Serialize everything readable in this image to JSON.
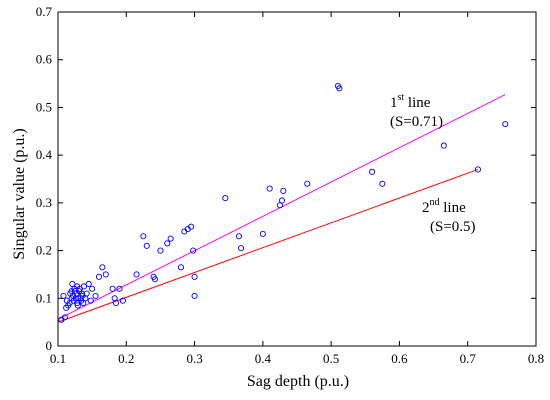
{
  "chart_data": {
    "type": "scatter",
    "xlabel": "Sag depth (p.u.)",
    "ylabel": "Singular  value (p.u.)",
    "xlim": [
      0.1,
      0.8
    ],
    "ylim": [
      0,
      0.7
    ],
    "xticks": [
      "0.1",
      "0.2",
      "0.3",
      "0.4",
      "0.5",
      "0.6",
      "0.7",
      "0.8"
    ],
    "yticks": [
      "0",
      "0.1",
      "0.2",
      "0.3",
      "0.4",
      "0.5",
      "0.6",
      "0.7"
    ],
    "grid": false,
    "series": [
      {
        "marker_color": "#0000ff",
        "x": [
          0.105,
          0.108,
          0.11,
          0.112,
          0.113,
          0.115,
          0.117,
          0.118,
          0.12,
          0.12,
          0.121,
          0.122,
          0.123,
          0.124,
          0.125,
          0.126,
          0.127,
          0.128,
          0.128,
          0.129,
          0.13,
          0.131,
          0.132,
          0.133,
          0.134,
          0.135,
          0.136,
          0.137,
          0.138,
          0.14,
          0.142,
          0.145,
          0.148,
          0.15,
          0.155,
          0.16,
          0.165,
          0.17,
          0.18,
          0.183,
          0.185,
          0.19,
          0.195,
          0.215,
          0.225,
          0.23,
          0.24,
          0.242,
          0.25,
          0.26,
          0.265,
          0.28,
          0.285,
          0.29,
          0.295,
          0.298,
          0.3,
          0.3,
          0.345,
          0.365,
          0.368,
          0.4,
          0.41,
          0.425,
          0.428,
          0.43,
          0.465,
          0.51,
          0.512,
          0.56,
          0.575,
          0.665,
          0.715,
          0.755
        ],
        "y": [
          0.055,
          0.105,
          0.06,
          0.08,
          0.095,
          0.085,
          0.09,
          0.11,
          0.1,
          0.115,
          0.13,
          0.105,
          0.095,
          0.12,
          0.115,
          0.1,
          0.11,
          0.09,
          0.125,
          0.085,
          0.1,
          0.115,
          0.12,
          0.1,
          0.095,
          0.11,
          0.105,
          0.09,
          0.125,
          0.1,
          0.11,
          0.13,
          0.095,
          0.12,
          0.105,
          0.145,
          0.165,
          0.15,
          0.12,
          0.1,
          0.09,
          0.12,
          0.095,
          0.15,
          0.23,
          0.21,
          0.145,
          0.14,
          0.2,
          0.215,
          0.225,
          0.165,
          0.24,
          0.245,
          0.25,
          0.2,
          0.145,
          0.105,
          0.31,
          0.23,
          0.205,
          0.235,
          0.33,
          0.295,
          0.305,
          0.325,
          0.34,
          0.545,
          0.54,
          0.365,
          0.34,
          0.42,
          0.37,
          0.465
        ]
      }
    ],
    "lines": [
      {
        "name": "1st line",
        "color": "#ff00ff",
        "x": [
          0.1,
          0.755
        ],
        "y": [
          0.056,
          0.527
        ]
      },
      {
        "name": "2nd line",
        "color": "#ff0000",
        "x": [
          0.1,
          0.715
        ],
        "y": [
          0.05,
          0.37
        ]
      }
    ],
    "annotations": [
      {
        "id": "line1",
        "base": "1",
        "sup": "st",
        "rest": " line",
        "sub_text": "(S=0.71)"
      },
      {
        "id": "line2",
        "base": "2",
        "sup": "nd",
        "rest": " line",
        "sub_text": "(S=0.5)"
      }
    ]
  }
}
